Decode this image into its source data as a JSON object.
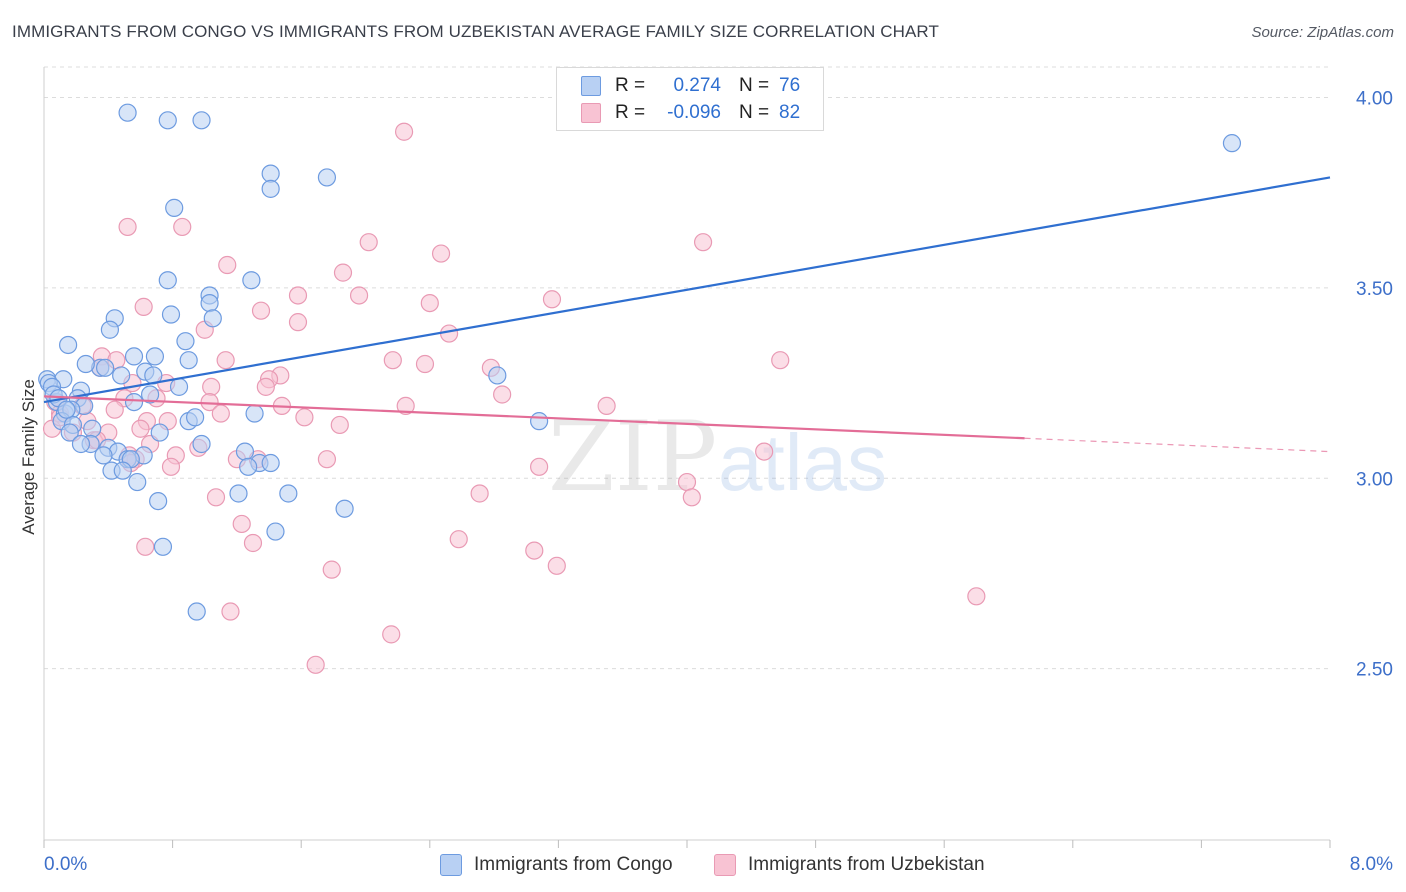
{
  "title": "IMMIGRANTS FROM CONGO VS IMMIGRANTS FROM UZBEKISTAN AVERAGE FAMILY SIZE CORRELATION CHART",
  "source": "Source: ZipAtlas.com",
  "watermark": "ZIPatlas",
  "legend": {
    "rows": [
      {
        "r_label": "R =",
        "r_value": "0.274",
        "n_label": "N =",
        "n_value": "76"
      },
      {
        "r_label": "R =",
        "r_value": "-0.096",
        "n_label": "N =",
        "n_value": "82"
      }
    ]
  },
  "bottom_legend": [
    "Immigrants from Congo",
    "Immigrants from Uzbekistan"
  ],
  "colors": {
    "congo_fill": "#b8d0f3",
    "congo_stroke": "#6d9be0",
    "congo_line": "#2f6fd0",
    "uzb_fill": "#f8c3d3",
    "uzb_stroke": "#e99ab4",
    "uzb_line": "#e36d97",
    "tick_text": "#3d6fc9"
  },
  "chart_data": {
    "type": "scatter",
    "title": "IMMIGRANTS FROM CONGO VS IMMIGRANTS FROM UZBEKISTAN AVERAGE FAMILY SIZE CORRELATION CHART",
    "xlabel": "",
    "ylabel": "Average Family Size",
    "xlim": [
      0,
      8.0
    ],
    "ylim": [
      2.05,
      4.08
    ],
    "x_tick_labels": [
      "0.0%",
      "8.0%"
    ],
    "y_ticks": [
      2.5,
      3.0,
      3.5,
      4.0
    ],
    "y_tick_labels": [
      "2.50",
      "3.00",
      "3.50",
      "4.00"
    ],
    "grid": "horizontal dashed",
    "series": [
      {
        "name": "Immigrants from Congo",
        "r": 0.274,
        "n": 76,
        "trend": {
          "x": [
            0.0,
            8.0
          ],
          "y": [
            3.2,
            3.79
          ]
        },
        "points": [
          [
            0.52,
            3.96
          ],
          [
            0.77,
            3.94
          ],
          [
            0.98,
            3.94
          ],
          [
            7.39,
            3.88
          ],
          [
            1.41,
            3.8
          ],
          [
            1.76,
            3.79
          ],
          [
            1.41,
            3.76
          ],
          [
            0.81,
            3.71
          ],
          [
            0.77,
            3.52
          ],
          [
            1.29,
            3.52
          ],
          [
            1.03,
            3.48
          ],
          [
            1.03,
            3.46
          ],
          [
            0.44,
            3.42
          ],
          [
            0.79,
            3.43
          ],
          [
            1.05,
            3.42
          ],
          [
            0.41,
            3.39
          ],
          [
            0.15,
            3.35
          ],
          [
            0.88,
            3.36
          ],
          [
            0.56,
            3.32
          ],
          [
            0.69,
            3.32
          ],
          [
            0.9,
            3.31
          ],
          [
            0.35,
            3.29
          ],
          [
            0.38,
            3.29
          ],
          [
            0.48,
            3.27
          ],
          [
            0.63,
            3.28
          ],
          [
            0.68,
            3.27
          ],
          [
            0.02,
            3.26
          ],
          [
            0.12,
            3.26
          ],
          [
            0.03,
            3.25
          ],
          [
            0.05,
            3.24
          ],
          [
            0.23,
            3.23
          ],
          [
            0.84,
            3.24
          ],
          [
            2.82,
            3.27
          ],
          [
            0.66,
            3.22
          ],
          [
            0.21,
            3.21
          ],
          [
            0.56,
            3.2
          ],
          [
            0.08,
            3.2
          ],
          [
            0.25,
            3.19
          ],
          [
            0.13,
            3.17
          ],
          [
            0.17,
            3.18
          ],
          [
            1.31,
            3.17
          ],
          [
            0.9,
            3.15
          ],
          [
            0.94,
            3.16
          ],
          [
            3.08,
            3.15
          ],
          [
            0.11,
            3.15
          ],
          [
            0.18,
            3.14
          ],
          [
            0.3,
            3.13
          ],
          [
            0.16,
            3.12
          ],
          [
            0.98,
            3.09
          ],
          [
            0.29,
            3.09
          ],
          [
            0.4,
            3.08
          ],
          [
            0.46,
            3.07
          ],
          [
            0.62,
            3.06
          ],
          [
            1.25,
            3.07
          ],
          [
            0.23,
            3.09
          ],
          [
            0.52,
            3.05
          ],
          [
            0.54,
            3.05
          ],
          [
            1.34,
            3.04
          ],
          [
            1.41,
            3.04
          ],
          [
            1.27,
            3.03
          ],
          [
            0.42,
            3.02
          ],
          [
            0.49,
            3.02
          ],
          [
            0.58,
            2.99
          ],
          [
            1.21,
            2.96
          ],
          [
            1.52,
            2.96
          ],
          [
            0.71,
            2.94
          ],
          [
            1.87,
            2.92
          ],
          [
            1.44,
            2.86
          ],
          [
            0.74,
            2.82
          ],
          [
            0.95,
            2.65
          ],
          [
            0.06,
            3.22
          ],
          [
            0.09,
            3.21
          ],
          [
            0.26,
            3.3
          ],
          [
            0.14,
            3.18
          ],
          [
            0.37,
            3.06
          ],
          [
            0.72,
            3.12
          ]
        ]
      },
      {
        "name": "Immigrants from Uzbekistan",
        "r": -0.096,
        "n": 82,
        "trend": {
          "x": [
            0.0,
            6.1
          ],
          "y": [
            3.215,
            3.105
          ]
        },
        "trend_dashed": {
          "x": [
            6.1,
            8.0
          ],
          "y": [
            3.105,
            3.07
          ]
        },
        "points": [
          [
            2.24,
            3.91
          ],
          [
            0.52,
            3.66
          ],
          [
            0.86,
            3.66
          ],
          [
            4.1,
            3.62
          ],
          [
            2.02,
            3.62
          ],
          [
            2.47,
            3.59
          ],
          [
            1.14,
            3.56
          ],
          [
            1.86,
            3.54
          ],
          [
            1.58,
            3.48
          ],
          [
            1.96,
            3.48
          ],
          [
            3.16,
            3.47
          ],
          [
            2.4,
            3.46
          ],
          [
            0.62,
            3.45
          ],
          [
            1.35,
            3.44
          ],
          [
            1.58,
            3.41
          ],
          [
            1.0,
            3.39
          ],
          [
            2.52,
            3.38
          ],
          [
            0.36,
            3.32
          ],
          [
            0.45,
            3.31
          ],
          [
            2.17,
            3.31
          ],
          [
            4.58,
            3.31
          ],
          [
            1.13,
            3.31
          ],
          [
            0.35,
            3.29
          ],
          [
            2.37,
            3.3
          ],
          [
            2.78,
            3.29
          ],
          [
            1.47,
            3.27
          ],
          [
            1.4,
            3.26
          ],
          [
            0.55,
            3.25
          ],
          [
            0.76,
            3.25
          ],
          [
            1.04,
            3.24
          ],
          [
            1.38,
            3.24
          ],
          [
            2.85,
            3.22
          ],
          [
            0.5,
            3.21
          ],
          [
            0.7,
            3.21
          ],
          [
            1.03,
            3.2
          ],
          [
            0.07,
            3.2
          ],
          [
            2.25,
            3.19
          ],
          [
            3.5,
            3.19
          ],
          [
            1.48,
            3.19
          ],
          [
            0.44,
            3.18
          ],
          [
            0.1,
            3.17
          ],
          [
            1.62,
            3.16
          ],
          [
            0.64,
            3.15
          ],
          [
            0.77,
            3.15
          ],
          [
            1.84,
            3.14
          ],
          [
            0.05,
            3.13
          ],
          [
            0.18,
            3.12
          ],
          [
            0.31,
            3.1
          ],
          [
            0.66,
            3.09
          ],
          [
            0.96,
            3.08
          ],
          [
            0.53,
            3.06
          ],
          [
            0.82,
            3.06
          ],
          [
            1.2,
            3.05
          ],
          [
            1.33,
            3.05
          ],
          [
            1.76,
            3.05
          ],
          [
            4.48,
            3.07
          ],
          [
            0.57,
            3.05
          ],
          [
            0.54,
            3.04
          ],
          [
            0.79,
            3.03
          ],
          [
            3.08,
            3.03
          ],
          [
            4.0,
            2.99
          ],
          [
            2.71,
            2.96
          ],
          [
            1.07,
            2.95
          ],
          [
            4.03,
            2.95
          ],
          [
            1.23,
            2.88
          ],
          [
            2.58,
            2.84
          ],
          [
            1.3,
            2.83
          ],
          [
            0.63,
            2.82
          ],
          [
            3.05,
            2.81
          ],
          [
            3.19,
            2.77
          ],
          [
            1.79,
            2.76
          ],
          [
            5.8,
            2.69
          ],
          [
            1.16,
            2.65
          ],
          [
            2.16,
            2.59
          ],
          [
            1.69,
            2.51
          ],
          [
            0.1,
            3.16
          ],
          [
            0.24,
            3.19
          ],
          [
            0.4,
            3.12
          ],
          [
            0.27,
            3.15
          ],
          [
            0.33,
            3.1
          ],
          [
            0.6,
            3.13
          ],
          [
            1.1,
            3.17
          ]
        ]
      }
    ]
  }
}
